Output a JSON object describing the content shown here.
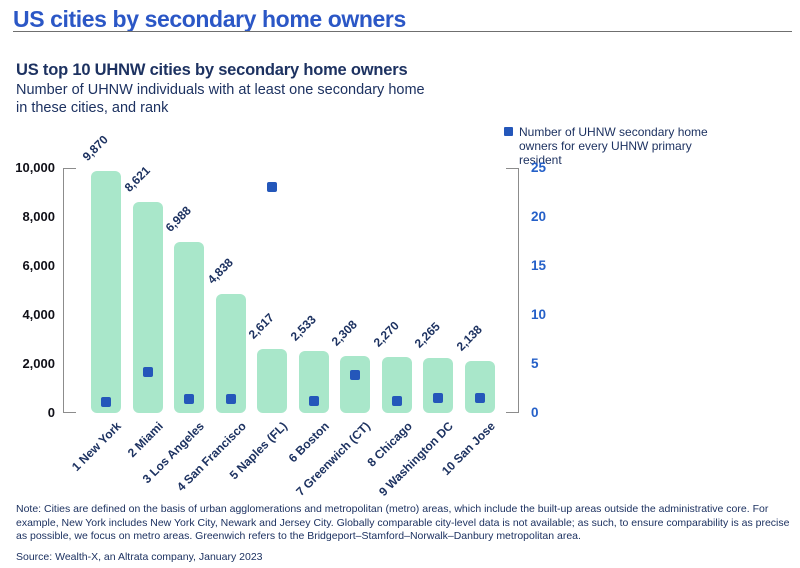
{
  "page_title": "US cities by secondary home owners",
  "chart": {
    "title": "US top 10 UHNW cities by secondary home owners",
    "subtitle_lines": [
      "Number of UHNW individuals with at least one secondary home",
      "in these cities, and rank"
    ],
    "legend_label": "Number of UHNW secondary home owners for every UHNW primary resident"
  },
  "chart_data": {
    "type": "combo",
    "categories": [
      "1 New York",
      "2 Miami",
      "3 Los Angeles",
      "4 San Francisco",
      "5 Naples (FL)",
      "6 Boston",
      "7 Greenwich (CT)",
      "8 Chicago",
      "9 Washington DC",
      "10 San Jose"
    ],
    "series": [
      {
        "name": "Number of UHNW individuals with at least one secondary home",
        "type": "bar",
        "axis": "left",
        "color": "#a9e7ca",
        "values": [
          9870,
          8621,
          6988,
          4838,
          2617,
          2533,
          2308,
          2270,
          2265,
          2138
        ],
        "value_labels": [
          "9,870",
          "8,621",
          "6,988",
          "4,838",
          "2,617",
          "2,533",
          "2,308",
          "2,270",
          "2,265",
          "2,138"
        ]
      },
      {
        "name": "Number of UHNW secondary home owners for every UHNW primary resident",
        "type": "scatter",
        "marker": "square",
        "axis": "right",
        "color": "#2457ba",
        "values": [
          1.1,
          4.2,
          1.4,
          1.4,
          23.1,
          1.2,
          3.9,
          1.2,
          1.5,
          1.5
        ]
      }
    ],
    "left_axis": {
      "range": [
        0,
        10000
      ],
      "ticks": [
        0,
        2000,
        4000,
        6000,
        8000,
        10000
      ],
      "tick_labels": [
        "0",
        "2,000",
        "4,000",
        "6,000",
        "8,000",
        "10,000"
      ]
    },
    "right_axis": {
      "range": [
        0,
        25
      ],
      "ticks": [
        0,
        5,
        10,
        15,
        20,
        25
      ],
      "tick_labels": [
        "0",
        "5",
        "10",
        "15",
        "20",
        "25"
      ]
    },
    "grid": false,
    "legend_position": "top-right",
    "bar_label_rotation_deg": -45,
    "category_label_rotation_deg": -45
  },
  "note": "Note: Cities are defined on the basis of urban agglomerations and metropolitan (metro) areas, which include the built-up areas outside the administrative core. For example, New York includes New York City, Newark and Jersey City. Globally comparable city-level data is not available; as such, to ensure comparability is as precise as possible, we focus on metro areas. Greenwich refers to the Bridgeport–Stamford–Norwalk–Danbury metropolitan area.",
  "source": "Source: Wealth-X, an Altrata company, January 2023",
  "colors": {
    "page_title_blue": "#2b57c6",
    "heading_navy": "#1d3261",
    "bar_green": "#a9e7ca",
    "marker_blue": "#2457ba",
    "right_axis_blue": "#2560c8",
    "axis_gray": "#8c8c8c"
  }
}
